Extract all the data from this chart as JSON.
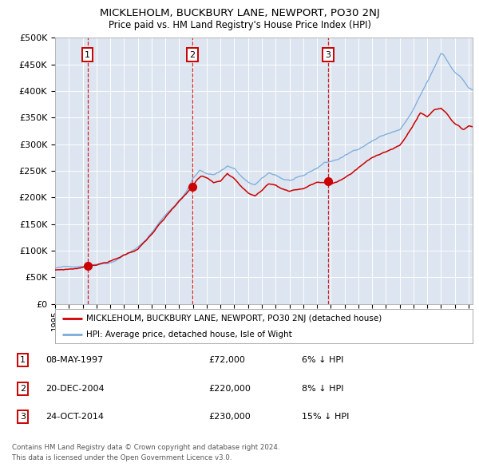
{
  "title": "MICKLEHOLM, BUCKBURY LANE, NEWPORT, PO30 2NJ",
  "subtitle": "Price paid vs. HM Land Registry's House Price Index (HPI)",
  "legend_property": "MICKLEHOLM, BUCKBURY LANE, NEWPORT, PO30 2NJ (detached house)",
  "legend_hpi": "HPI: Average price, detached house, Isle of Wight",
  "transactions": [
    {
      "num": 1,
      "date": "08-MAY-1997",
      "price": 72000,
      "pct": "6%",
      "dir": "↓"
    },
    {
      "num": 2,
      "date": "20-DEC-2004",
      "price": 220000,
      "pct": "8%",
      "dir": "↓"
    },
    {
      "num": 3,
      "date": "24-OCT-2014",
      "price": 230000,
      "pct": "15%",
      "dir": "↓"
    }
  ],
  "transaction_dates_decimal": [
    1997.36,
    2004.97,
    2014.81
  ],
  "transaction_prices": [
    72000,
    220000,
    230000
  ],
  "footnote1": "Contains HM Land Registry data © Crown copyright and database right 2024.",
  "footnote2": "This data is licensed under the Open Government Licence v3.0.",
  "bg_color": "#dde5f0",
  "grid_color": "#ffffff",
  "property_line_color": "#cc0000",
  "hpi_line_color": "#7aabdb",
  "vline_color": "#cc0000",
  "marker_color": "#cc0000",
  "ylim": [
    0,
    500000
  ],
  "xlim_start": 1995.0,
  "xlim_end": 2025.3,
  "hpi_anchors": [
    [
      1995.0,
      67000
    ],
    [
      1996.0,
      68500
    ],
    [
      1997.0,
      72000
    ],
    [
      1997.5,
      74000
    ],
    [
      1998.0,
      77000
    ],
    [
      1999.0,
      82000
    ],
    [
      1999.5,
      88000
    ],
    [
      2000.0,
      96000
    ],
    [
      2001.0,
      110000
    ],
    [
      2001.5,
      122000
    ],
    [
      2002.0,
      138000
    ],
    [
      2002.5,
      155000
    ],
    [
      2003.0,
      172000
    ],
    [
      2003.5,
      186000
    ],
    [
      2004.0,
      200000
    ],
    [
      2004.5,
      215000
    ],
    [
      2005.0,
      240000
    ],
    [
      2005.5,
      255000
    ],
    [
      2006.0,
      250000
    ],
    [
      2006.5,
      248000
    ],
    [
      2007.0,
      255000
    ],
    [
      2007.5,
      265000
    ],
    [
      2008.0,
      260000
    ],
    [
      2008.5,
      245000
    ],
    [
      2009.0,
      232000
    ],
    [
      2009.5,
      228000
    ],
    [
      2010.0,
      238000
    ],
    [
      2010.5,
      248000
    ],
    [
      2011.0,
      245000
    ],
    [
      2011.5,
      238000
    ],
    [
      2012.0,
      235000
    ],
    [
      2012.5,
      238000
    ],
    [
      2013.0,
      240000
    ],
    [
      2013.5,
      248000
    ],
    [
      2014.0,
      255000
    ],
    [
      2014.5,
      265000
    ],
    [
      2015.0,
      268000
    ],
    [
      2015.5,
      272000
    ],
    [
      2016.0,
      278000
    ],
    [
      2016.5,
      285000
    ],
    [
      2017.0,
      292000
    ],
    [
      2017.5,
      300000
    ],
    [
      2018.0,
      308000
    ],
    [
      2018.5,
      315000
    ],
    [
      2019.0,
      320000
    ],
    [
      2019.5,
      325000
    ],
    [
      2020.0,
      328000
    ],
    [
      2020.5,
      345000
    ],
    [
      2021.0,
      365000
    ],
    [
      2021.5,
      390000
    ],
    [
      2022.0,
      415000
    ],
    [
      2022.5,
      440000
    ],
    [
      2023.0,
      468000
    ],
    [
      2023.2,
      465000
    ],
    [
      2023.5,
      452000
    ],
    [
      2023.8,
      440000
    ],
    [
      2024.0,
      435000
    ],
    [
      2024.3,
      428000
    ],
    [
      2024.6,
      420000
    ],
    [
      2025.0,
      405000
    ],
    [
      2025.3,
      400000
    ]
  ],
  "prop_anchors": [
    [
      1995.0,
      63000
    ],
    [
      1996.0,
      65000
    ],
    [
      1997.0,
      68000
    ],
    [
      1997.36,
      72000
    ],
    [
      1997.8,
      74000
    ],
    [
      1998.5,
      78000
    ],
    [
      1999.0,
      82000
    ],
    [
      1999.5,
      86000
    ],
    [
      2000.0,
      93000
    ],
    [
      2001.0,
      105000
    ],
    [
      2001.5,
      118000
    ],
    [
      2002.0,
      132000
    ],
    [
      2002.5,
      148000
    ],
    [
      2003.0,
      162000
    ],
    [
      2003.5,
      178000
    ],
    [
      2004.0,
      192000
    ],
    [
      2004.5,
      205000
    ],
    [
      2004.97,
      220000
    ],
    [
      2005.3,
      232000
    ],
    [
      2005.6,
      238000
    ],
    [
      2006.0,
      235000
    ],
    [
      2006.5,
      228000
    ],
    [
      2007.0,
      232000
    ],
    [
      2007.5,
      248000
    ],
    [
      2008.0,
      238000
    ],
    [
      2008.5,
      222000
    ],
    [
      2009.0,
      210000
    ],
    [
      2009.5,
      205000
    ],
    [
      2010.0,
      215000
    ],
    [
      2010.5,
      228000
    ],
    [
      2011.0,
      225000
    ],
    [
      2011.5,
      218000
    ],
    [
      2012.0,
      215000
    ],
    [
      2012.5,
      218000
    ],
    [
      2013.0,
      220000
    ],
    [
      2013.5,
      226000
    ],
    [
      2014.0,
      232000
    ],
    [
      2014.81,
      230000
    ],
    [
      2015.0,
      228000
    ],
    [
      2015.5,
      232000
    ],
    [
      2016.0,
      240000
    ],
    [
      2016.5,
      248000
    ],
    [
      2017.0,
      258000
    ],
    [
      2017.5,
      268000
    ],
    [
      2018.0,
      276000
    ],
    [
      2018.5,
      284000
    ],
    [
      2019.0,
      290000
    ],
    [
      2019.5,
      295000
    ],
    [
      2020.0,
      300000
    ],
    [
      2020.5,
      318000
    ],
    [
      2021.0,
      340000
    ],
    [
      2021.5,
      362000
    ],
    [
      2022.0,
      355000
    ],
    [
      2022.5,
      368000
    ],
    [
      2023.0,
      372000
    ],
    [
      2023.2,
      368000
    ],
    [
      2023.5,
      360000
    ],
    [
      2023.8,
      350000
    ],
    [
      2024.0,
      344000
    ],
    [
      2024.3,
      338000
    ],
    [
      2024.6,
      332000
    ],
    [
      2025.0,
      340000
    ],
    [
      2025.3,
      338000
    ]
  ]
}
